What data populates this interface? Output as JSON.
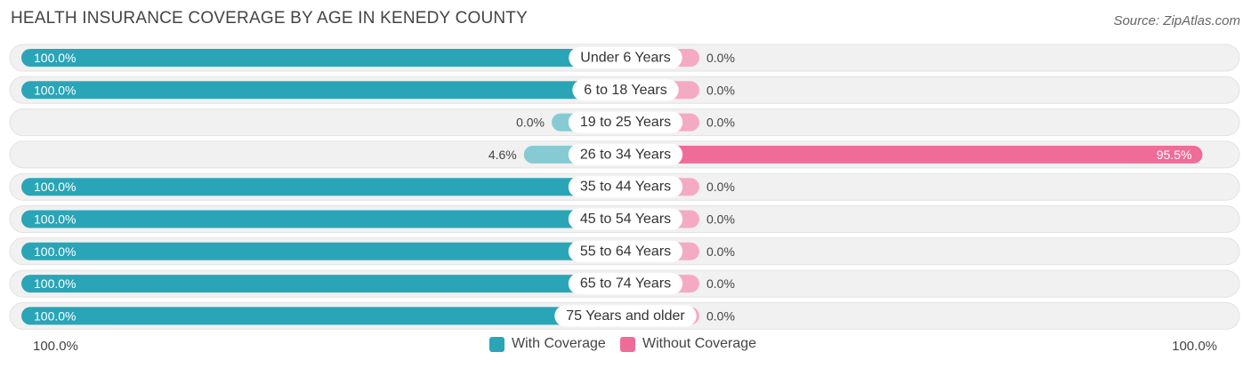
{
  "title": "HEALTH INSURANCE COVERAGE BY AGE IN KENEDY COUNTY",
  "source": "Source: ZipAtlas.com",
  "colors": {
    "with": "#2aa5b7",
    "with_light": "#86cbd4",
    "without": "#f06c98",
    "without_light": "#f5aac4",
    "track": "#f1f1f1"
  },
  "chart_data": {
    "type": "bar",
    "orientation": "horizontal-diverging",
    "title": "HEALTH INSURANCE COVERAGE BY AGE IN KENEDY COUNTY",
    "categories": [
      "Under 6 Years",
      "6 to 18 Years",
      "19 to 25 Years",
      "26 to 34 Years",
      "35 to 44 Years",
      "45 to 54 Years",
      "55 to 64 Years",
      "65 to 74 Years",
      "75 Years and older"
    ],
    "series": [
      {
        "name": "With Coverage",
        "values": [
          100.0,
          100.0,
          0.0,
          4.6,
          100.0,
          100.0,
          100.0,
          100.0,
          100.0
        ],
        "labels": [
          "100.0%",
          "100.0%",
          "0.0%",
          "4.6%",
          "100.0%",
          "100.0%",
          "100.0%",
          "100.0%",
          "100.0%"
        ]
      },
      {
        "name": "Without Coverage",
        "values": [
          0.0,
          0.0,
          0.0,
          95.5,
          0.0,
          0.0,
          0.0,
          0.0,
          0.0
        ],
        "labels": [
          "0.0%",
          "0.0%",
          "0.0%",
          "95.5%",
          "0.0%",
          "0.0%",
          "0.0%",
          "0.0%",
          "0.0%"
        ]
      }
    ],
    "xlim": [
      -100,
      100
    ],
    "axis_left_label": "100.0%",
    "axis_right_label": "100.0%",
    "legend_position": "bottom-center"
  }
}
